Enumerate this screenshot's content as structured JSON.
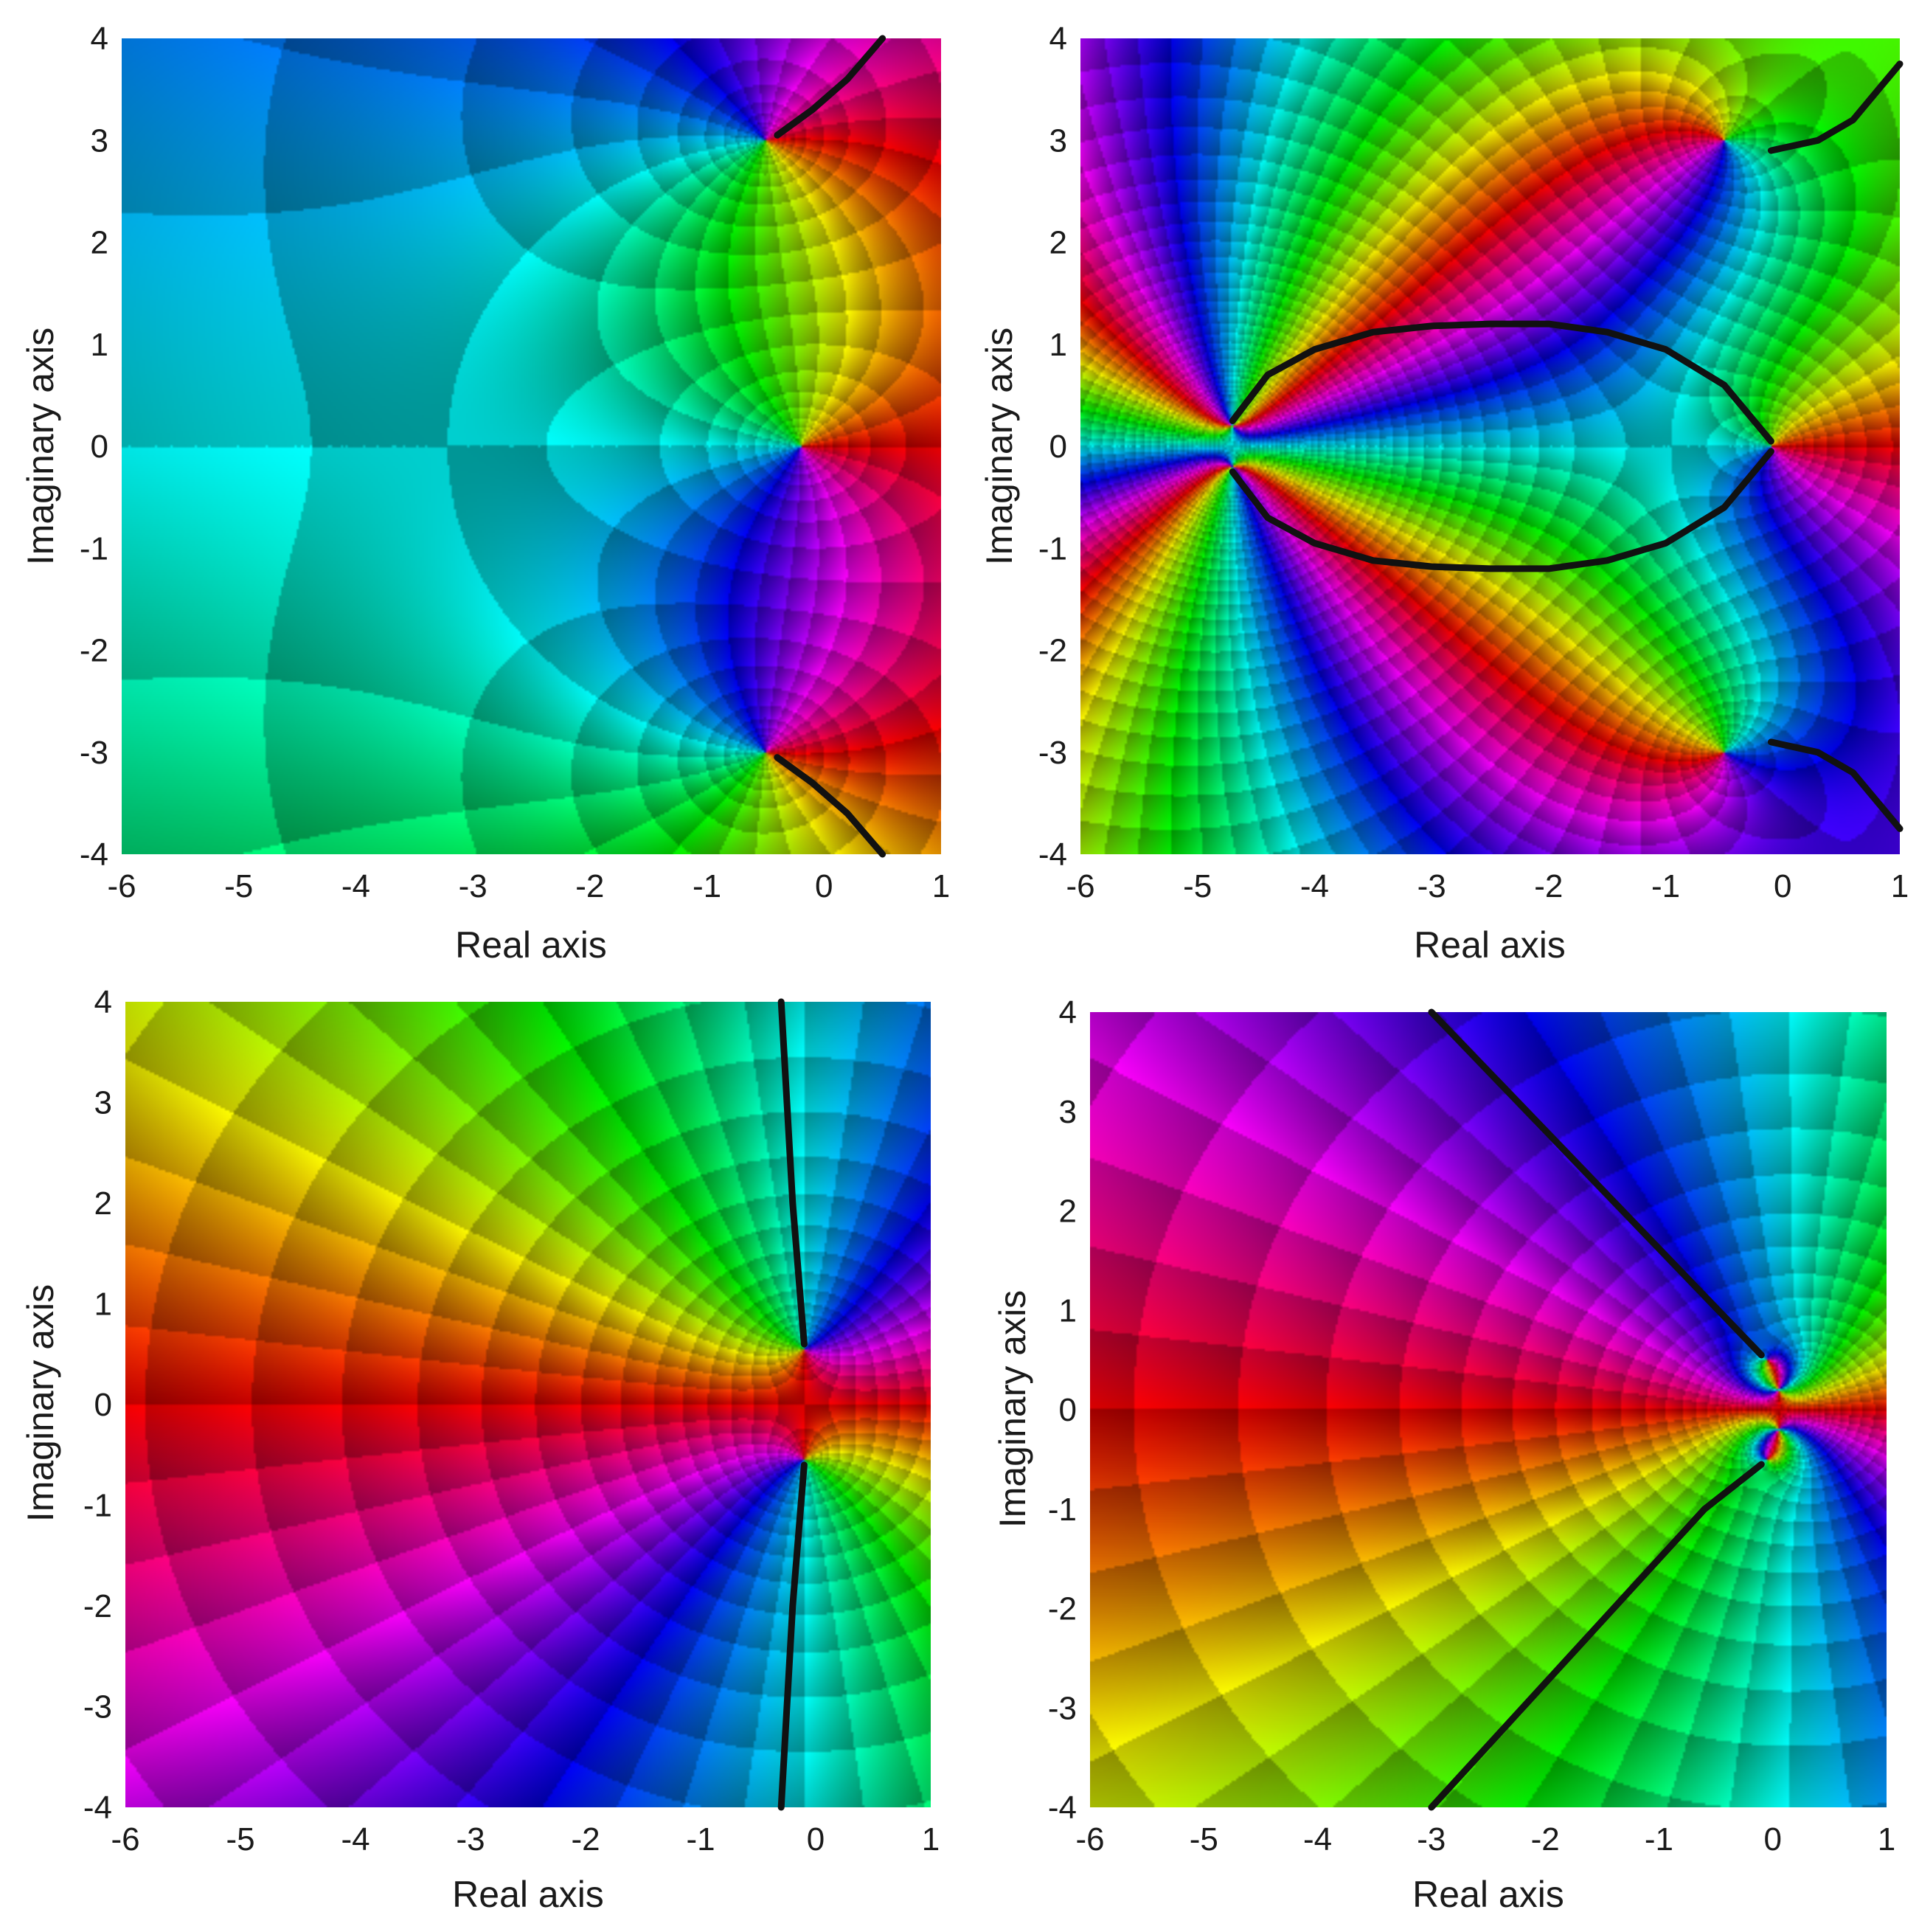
{
  "chart_data": [
    {
      "type": "heatmap",
      "title": "",
      "xlabel": "Real axis",
      "ylabel": "Imaginary axis",
      "xlim": [
        -6,
        1
      ],
      "ylim": [
        -4,
        4
      ],
      "x_ticks": [
        -6,
        -5,
        -4,
        -3,
        -2,
        -1,
        0,
        1
      ],
      "y_ticks": [
        -4,
        -3,
        -2,
        -1,
        0,
        1,
        2,
        3,
        4
      ],
      "zeros": [
        [
          -0.2,
          0
        ]
      ],
      "poles": [
        [
          -0.5,
          3
        ],
        [
          -0.5,
          -3
        ]
      ],
      "curves": [
        {
          "points": [
            [
              -0.4,
              3.05
            ],
            [
              -0.1,
              3.3
            ],
            [
              0.2,
              3.6
            ],
            [
              0.5,
              4.0
            ]
          ]
        },
        {
          "points": [
            [
              -0.4,
              -3.05
            ],
            [
              -0.1,
              -3.3
            ],
            [
              0.2,
              -3.6
            ],
            [
              0.5,
              -4.0
            ]
          ]
        }
      ]
    },
    {
      "type": "heatmap",
      "title": "",
      "xlabel": "Real axis",
      "ylabel": "Imaginary axis",
      "xlim": [
        -6,
        1
      ],
      "ylim": [
        -4,
        4
      ],
      "x_ticks": [
        -6,
        -5,
        -4,
        -3,
        -2,
        -1,
        0,
        1
      ],
      "y_ticks": [
        -4,
        -3,
        -2,
        -1,
        0,
        1,
        2,
        3,
        4
      ],
      "zeros": [
        [
          -0.1,
          0
        ],
        [
          -4.7,
          0.2
        ],
        [
          -4.7,
          -0.2
        ]
      ],
      "poles": [
        [
          -0.5,
          3
        ],
        [
          -0.5,
          -3
        ]
      ],
      "curves": [
        {
          "points": [
            [
              -4.7,
              0.25
            ],
            [
              -4.4,
              0.7
            ],
            [
              -4.0,
              0.95
            ],
            [
              -3.5,
              1.12
            ],
            [
              -3.0,
              1.18
            ],
            [
              -2.5,
              1.2
            ],
            [
              -2.0,
              1.2
            ],
            [
              -1.5,
              1.12
            ],
            [
              -1.0,
              0.95
            ],
            [
              -0.5,
              0.6
            ],
            [
              -0.1,
              0.05
            ]
          ]
        },
        {
          "points": [
            [
              -4.7,
              -0.25
            ],
            [
              -4.4,
              -0.7
            ],
            [
              -4.0,
              -0.95
            ],
            [
              -3.5,
              -1.12
            ],
            [
              -3.0,
              -1.18
            ],
            [
              -2.5,
              -1.2
            ],
            [
              -2.0,
              -1.2
            ],
            [
              -1.5,
              -1.12
            ],
            [
              -1.0,
              -0.95
            ],
            [
              -0.5,
              -0.6
            ],
            [
              -0.1,
              -0.05
            ]
          ]
        },
        {
          "points": [
            [
              -0.1,
              2.9
            ],
            [
              0.3,
              3.0
            ],
            [
              0.6,
              3.2
            ],
            [
              1.0,
              3.75
            ]
          ]
        },
        {
          "points": [
            [
              -0.1,
              -2.9
            ],
            [
              0.3,
              -3.0
            ],
            [
              0.6,
              -3.2
            ],
            [
              1.0,
              -3.75
            ]
          ]
        }
      ]
    },
    {
      "type": "heatmap",
      "title": "",
      "xlabel": "Real axis",
      "ylabel": "Imaginary axis",
      "xlim": [
        -6,
        1
      ],
      "ylim": [
        -4,
        4
      ],
      "x_ticks": [
        -6,
        -5,
        -4,
        -3,
        -2,
        -1,
        0,
        1
      ],
      "y_ticks": [
        -4,
        -3,
        -2,
        -1,
        0,
        1,
        2,
        3,
        4
      ],
      "zeros": [],
      "poles": [
        [
          -0.1,
          0.55
        ],
        [
          -0.1,
          -0.55
        ]
      ],
      "curves": [
        {
          "points": [
            [
              -0.1,
              0.6
            ],
            [
              -0.2,
              2.0
            ],
            [
              -0.3,
              4.0
            ]
          ]
        },
        {
          "points": [
            [
              -0.1,
              -0.6
            ],
            [
              -0.2,
              -2.0
            ],
            [
              -0.3,
              -4.0
            ]
          ]
        }
      ]
    },
    {
      "type": "heatmap",
      "title": "",
      "xlabel": "Real axis",
      "ylabel": "Imaginary axis",
      "xlim": [
        -6,
        1
      ],
      "ylim": [
        -4,
        4
      ],
      "x_ticks": [
        -6,
        -5,
        -4,
        -3,
        -2,
        -1,
        0,
        1
      ],
      "y_ticks": [
        -4,
        -3,
        -2,
        -1,
        0,
        1,
        2,
        3,
        4
      ],
      "zeros": [
        [
          0.05,
          0.2
        ],
        [
          0.05,
          -0.2
        ]
      ],
      "poles": [
        [
          -0.05,
          0.5
        ],
        [
          -0.05,
          -0.5
        ]
      ],
      "curves": [
        {
          "points": [
            [
              -0.1,
              0.55
            ],
            [
              -3.0,
              4.0
            ]
          ]
        },
        {
          "points": [
            [
              -0.1,
              -0.55
            ],
            [
              -0.6,
              -1.0
            ]
          ]
        },
        {
          "points": [
            [
              -0.6,
              -1.0
            ],
            [
              -3.0,
              -4.0
            ]
          ]
        }
      ]
    }
  ]
}
